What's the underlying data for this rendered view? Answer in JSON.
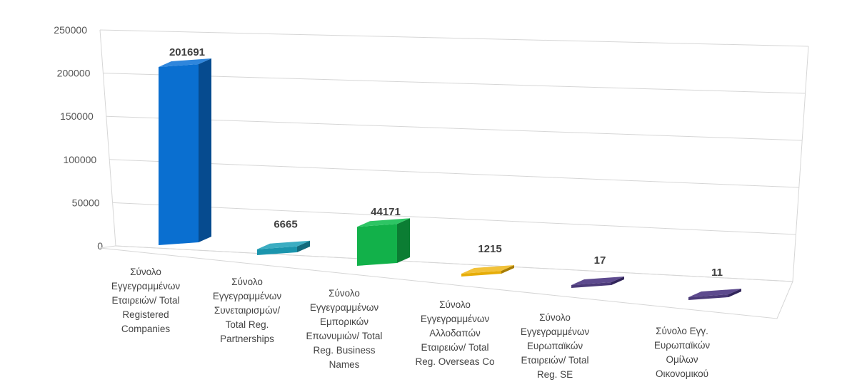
{
  "chart_data": {
    "type": "bar",
    "title": "",
    "xlabel": "",
    "ylabel": "",
    "ylim": [
      0,
      250000
    ],
    "yticks": [
      "0",
      "50000",
      "100000",
      "150000",
      "200000",
      "250000"
    ],
    "grid": true,
    "legend": "none",
    "categories": [
      [
        "Σύνολο",
        "Εγγεγραμμένων",
        "Εταιρειών/ Total",
        "Registered",
        "Companies"
      ],
      [
        "Σύνολο",
        "Εγγεγραμμένων",
        "Συνεταιρισμών/",
        "Total Reg.",
        "Partnerships"
      ],
      [
        "Σύνολο",
        "Εγγεγραμμένων",
        "Εμπορικών",
        "Επωνυμιών/ Total",
        "Reg. Business",
        "Names"
      ],
      [
        "Σύνολο",
        "Εγγεγραμμένων",
        "Αλλοδαπών",
        "Εταιρειών/ Total",
        "Reg. Overseas Co"
      ],
      [
        "Σύνολο",
        "Εγγεγραμμένων",
        "Ευρωπαϊκών",
        "Εταιρειών/ Total",
        "Reg. SE"
      ],
      [
        "Σύνολο Εγγ.",
        "Ευρωπαϊκών",
        "Ομίλων",
        "Οικονομικού"
      ]
    ],
    "values": [
      201691,
      6665,
      44171,
      1215,
      17,
      11
    ],
    "data_labels": [
      "201691",
      "6665",
      "44171",
      "1215",
      "17",
      "11"
    ],
    "colors": [
      {
        "front": "#0a6fd0",
        "side": "#064b8f",
        "top": "#2f86dc"
      },
      {
        "front": "#1b95ad",
        "side": "#126a7c",
        "top": "#3cadc2"
      },
      {
        "front": "#12b14a",
        "side": "#0b7d33",
        "top": "#2dc564"
      },
      {
        "front": "#e6ad08",
        "side": "#a87d05",
        "top": "#f2c23a"
      },
      {
        "front": "#4b3a78",
        "side": "#31255a",
        "top": "#5d4a8e"
      },
      {
        "front": "#4b3a78",
        "side": "#31255a",
        "top": "#5d4a8e"
      }
    ]
  }
}
